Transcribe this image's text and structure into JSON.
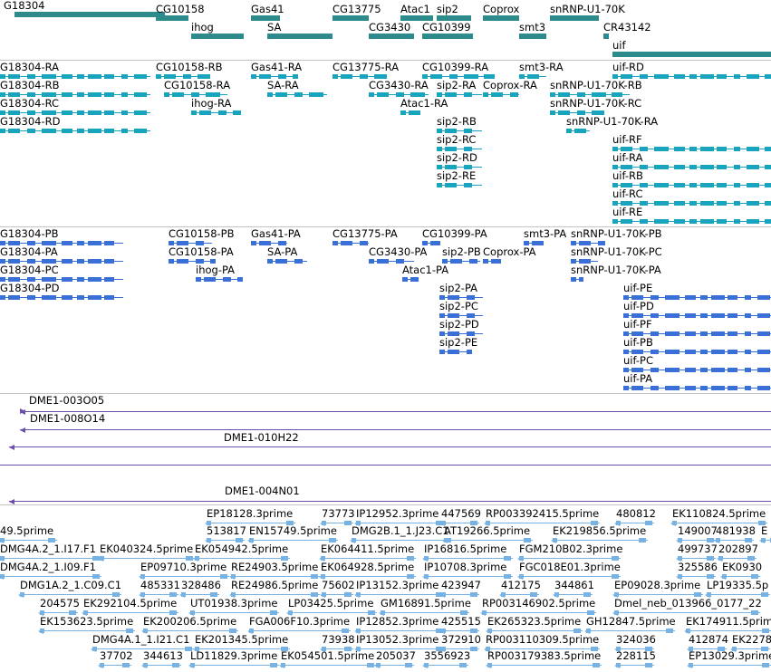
{
  "colors": {
    "gene": "#2e8b8b",
    "transcript": "#19a4be",
    "protein": "#3a6fd6",
    "clone": "#6a4fa8",
    "est": "#76b2e3",
    "separator": "#c4c4c4"
  },
  "tracks": {
    "genes": {
      "features": [
        "G18304",
        "CG10158",
        "ihog",
        "Gas41",
        "SA",
        "CG13775",
        "CG3430",
        "Atac1",
        "sip2",
        "CG10399",
        "Coprox",
        "smt3",
        "snRNP-U1-70K",
        "CR43142",
        "uif"
      ]
    },
    "transcripts": {
      "features": [
        "G18304-RA",
        "G18304-RB",
        "G18304-RC",
        "G18304-RD",
        "CG10158-RB",
        "CG10158-RA",
        "ihog-RA",
        "Gas41-RA",
        "SA-RA",
        "CG13775-RA",
        "CG3430-RA",
        "Atac1-RA",
        "CG10399-RA",
        "sip2-RA",
        "Coprox-RA",
        "sip2-RB",
        "sip2-RC",
        "sip2-RD",
        "sip2-RE",
        "smt3-RA",
        "snRNP-U1-70K-RB",
        "snRNP-U1-70K-RC",
        "snRNP-U1-70K-RA",
        "uif-RD",
        "uif-RF",
        "uif-RA",
        "uif-RB",
        "uif-RC",
        "uif-RE"
      ]
    },
    "proteins": {
      "features": [
        "G18304-PB",
        "G18304-PA",
        "G18304-PC",
        "G18304-PD",
        "CG10158-PB",
        "CG10158-PA",
        "ihog-PA",
        "Gas41-PA",
        "SA-PA",
        "CG13775-PA",
        "CG3430-PA",
        "Atac1-PA",
        "CG10399-PA",
        "sip2-PB",
        "Coprox-PA",
        "sip2-PA",
        "sip2-PC",
        "sip2-PD",
        "sip2-PE",
        "smt3-PA",
        "snRNP-U1-70K-PB",
        "snRNP-U1-70K-PC",
        "snRNP-U1-70K-PA",
        "uif-PE",
        "uif-PD",
        "uif-PF",
        "uif-PB",
        "uif-PC",
        "uif-PA"
      ]
    },
    "clones": {
      "features": [
        "DME1-003O05",
        "DME1-008O14",
        "DME1-010H22",
        "DME1-004N01"
      ]
    },
    "ests": {
      "features": [
        "EP18128.3prime",
        "73773",
        "IP12952.3prime",
        "447569",
        "RP003392415.5prime",
        "480812",
        "EK110824.5prime",
        "49.5prime",
        "513817",
        "EN15749.5prime",
        "DMG2B.1_1.J23.C1",
        "AT19266.5prime",
        "EK219856.5prime",
        "149007",
        "481938",
        "E",
        "DMG4A.2_1.I17.F1",
        "EK040324.5prime",
        "EK054942.5prime",
        "EK064411.5prime",
        "IP16816.5prime",
        "FGM210B02.3prime",
        "499737",
        "202897",
        "DMG4A.2_1.I09.F1",
        "EP09710.3prime",
        "RE24903.5prime",
        "EK064928.5prime",
        "IP10708.3prime",
        "FGC018E01.3prime",
        "325586",
        "EK0930",
        "DMG1A.2_1.C09.C1",
        "485331",
        "328486",
        "RE24986.5prime",
        "75602",
        "IP13152.3prime",
        "423947",
        "412175",
        "344861",
        "EP09028.3prime",
        "LP19335.5p",
        "204575",
        "EK292104.5prime",
        "UT01938.3prime",
        "LP03425.5prime",
        "GM16891.5prime",
        "RP003146902.5prime",
        "Dmel_neb_013966_0177_22",
        "EK153623.5prime",
        "EK200206.5prime",
        "FGA006F10.3prime",
        "IP12852.3prime",
        "425515",
        "EK265323.5prime",
        "GH12847.5prime",
        "EK174911.5prime",
        "DMG4A.1_1.I21.C1",
        "EK201345.5prime",
        "73938",
        "IP13052.3prime",
        "372910",
        "RP003110309.5prime",
        "324036",
        "412874",
        "EK2278",
        "37702",
        "344613",
        "LD11829.3prime",
        "EK054501.5prime",
        "205037",
        "3556923",
        "RP003179383.5prime",
        "228115",
        "EP13029.3prime"
      ]
    }
  }
}
